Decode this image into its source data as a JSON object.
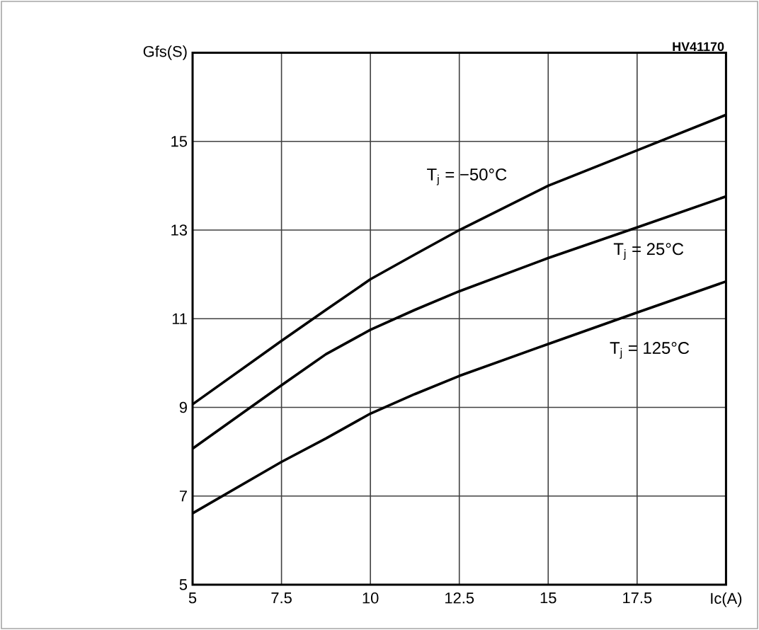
{
  "chart_data": {
    "type": "line",
    "x": [
      5,
      7.5,
      8.75,
      10,
      11.25,
      12.5,
      15,
      17.5,
      20
    ],
    "series": [
      {
        "name": "T$_{j}$ = −50°C",
        "color": "#000000",
        "values": [
          9.07,
          10.5,
          11.2,
          11.89,
          12.45,
          13.0,
          14.0,
          14.8,
          15.6
        ]
      },
      {
        "name": "T$_{j}$ = 25°C",
        "color": "#000000",
        "values": [
          8.07,
          9.5,
          10.2,
          10.75,
          11.2,
          11.62,
          12.37,
          13.06,
          13.76
        ]
      },
      {
        "name": "T$_{j}$ = 125°C",
        "color": "#000000",
        "values": [
          6.61,
          7.77,
          8.3,
          8.86,
          9.3,
          9.71,
          10.43,
          11.14,
          11.84
        ]
      }
    ],
    "xlim": [
      5,
      20
    ],
    "ylim": [
      5,
      17
    ],
    "xticks": [
      5,
      7.5,
      10,
      12.5,
      15,
      17.5,
      {
        "value": 20,
        "label": "Ic(A)"
      }
    ],
    "yticks": [
      5,
      7,
      9,
      11,
      13,
      15,
      {
        "value": 17,
        "label": "Gfs(S)"
      }
    ],
    "grid": true,
    "line_style": "solid",
    "marker": "none",
    "annotations": [
      "HV41170"
    ]
  }
}
